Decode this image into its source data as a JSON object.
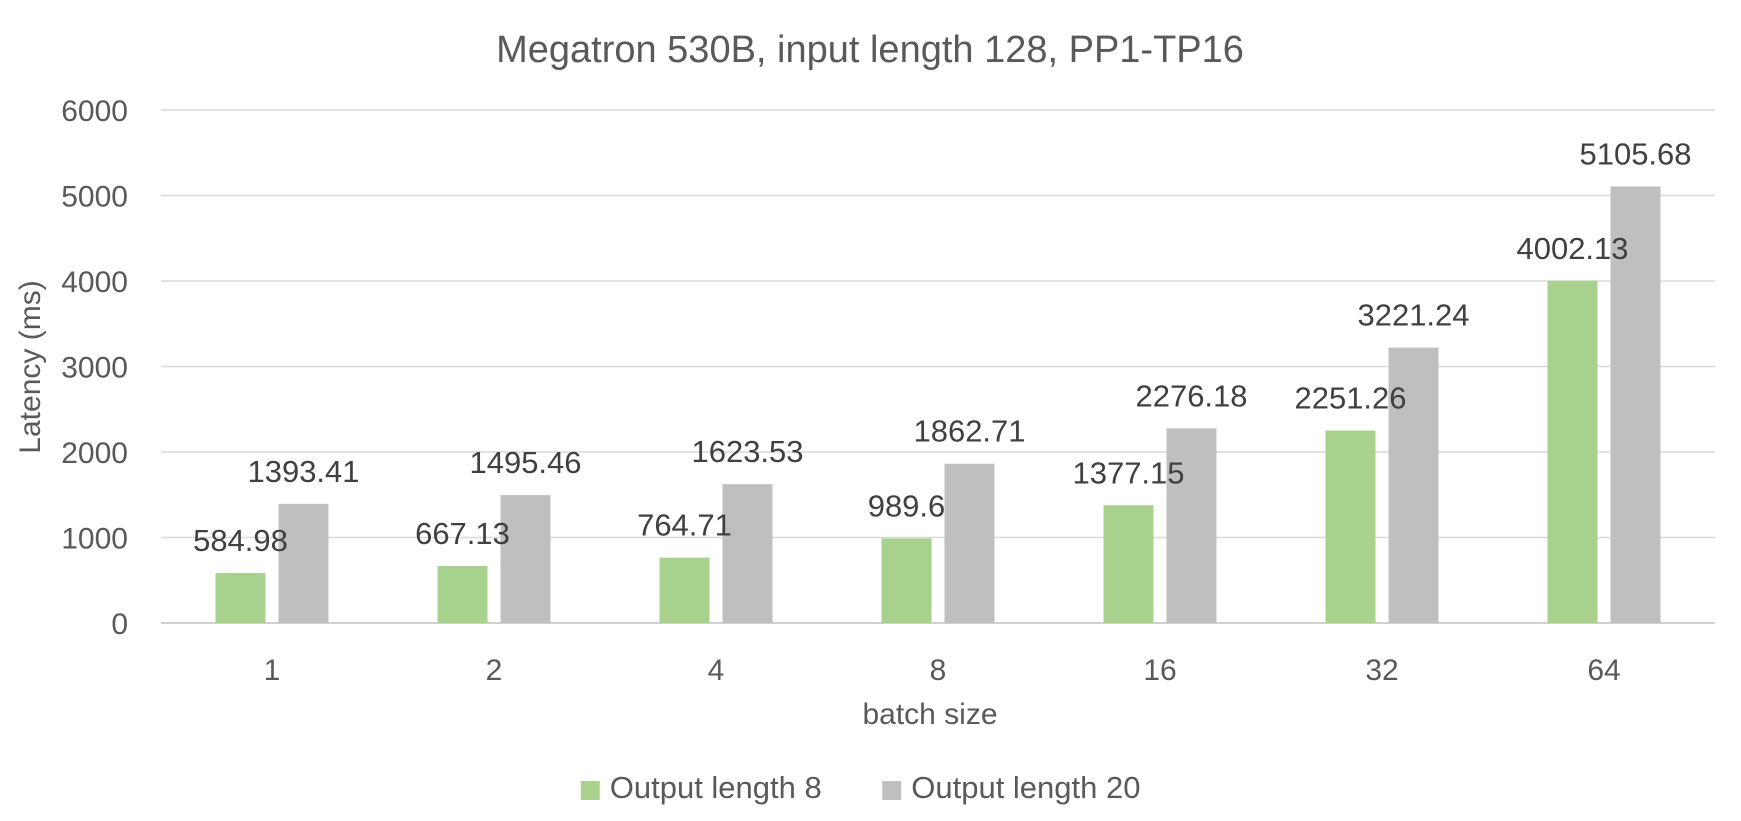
{
  "chart_data": {
    "type": "bar",
    "title": "Megatron 530B, input length 128, PP1-TP16",
    "xlabel": "batch size",
    "ylabel": "Latency (ms)",
    "categories": [
      "1",
      "2",
      "4",
      "8",
      "16",
      "32",
      "64"
    ],
    "ylim": [
      0,
      6000
    ],
    "yticks": [
      0,
      1000,
      2000,
      3000,
      4000,
      5000,
      6000
    ],
    "grid": true,
    "legend_position": "bottom",
    "series": [
      {
        "name": "Output length 8",
        "color": "#a9d18e",
        "values": [
          584.98,
          667.13,
          764.71,
          989.6,
          1377.15,
          2251.26,
          4002.13
        ],
        "labels": [
          "584.98",
          "667.13",
          "764.71",
          "989.6",
          "1377.15",
          "2251.26",
          "4002.13"
        ]
      },
      {
        "name": "Output length 20",
        "color": "#bfbfbf",
        "values": [
          1393.41,
          1495.46,
          1623.53,
          1862.71,
          2276.18,
          3221.24,
          5105.68
        ],
        "labels": [
          "1393.41",
          "1495.46",
          "1623.53",
          "1862.71",
          "2276.18",
          "3221.24",
          "5105.68"
        ]
      }
    ]
  }
}
